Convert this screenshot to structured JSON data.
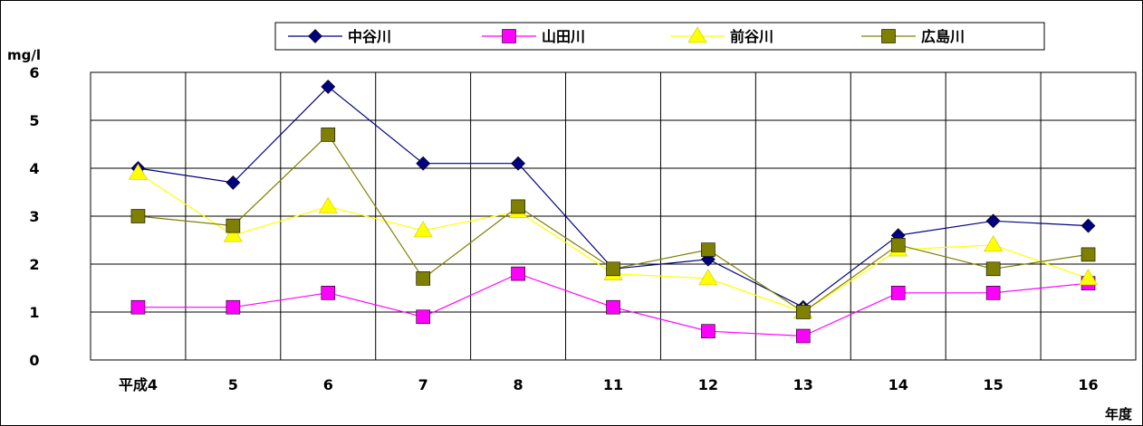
{
  "chart_data": {
    "type": "line",
    "ylabel": "mg/l",
    "xlabel": "年度",
    "ylim": [
      0,
      6
    ],
    "y_ticks": [
      "0",
      "1",
      "2",
      "3",
      "4",
      "5",
      "6"
    ],
    "categories": [
      "平成4",
      "5",
      "6",
      "7",
      "8",
      "11",
      "12",
      "13",
      "14",
      "15",
      "16"
    ],
    "grid": true,
    "legend_position": "top",
    "series": [
      {
        "name": "中谷川",
        "color": "#000080",
        "marker": "diamond",
        "values": [
          4.0,
          3.7,
          5.7,
          4.1,
          4.1,
          1.9,
          2.1,
          1.1,
          2.6,
          2.9,
          2.8
        ]
      },
      {
        "name": "山田川",
        "color": "#ff00ff",
        "marker": "square",
        "values": [
          1.1,
          1.1,
          1.4,
          0.9,
          1.8,
          1.1,
          0.6,
          0.5,
          1.4,
          1.4,
          1.6
        ]
      },
      {
        "name": "前谷川",
        "color": "#ffff00",
        "marker": "triangle",
        "values": [
          3.9,
          2.6,
          3.2,
          2.7,
          3.1,
          1.8,
          1.7,
          1.0,
          2.3,
          2.4,
          1.7
        ]
      },
      {
        "name": "広島川",
        "color": "#808000",
        "marker": "square",
        "values": [
          3.0,
          2.8,
          4.7,
          1.7,
          3.2,
          1.9,
          2.3,
          1.0,
          2.4,
          1.9,
          2.2
        ]
      }
    ]
  }
}
